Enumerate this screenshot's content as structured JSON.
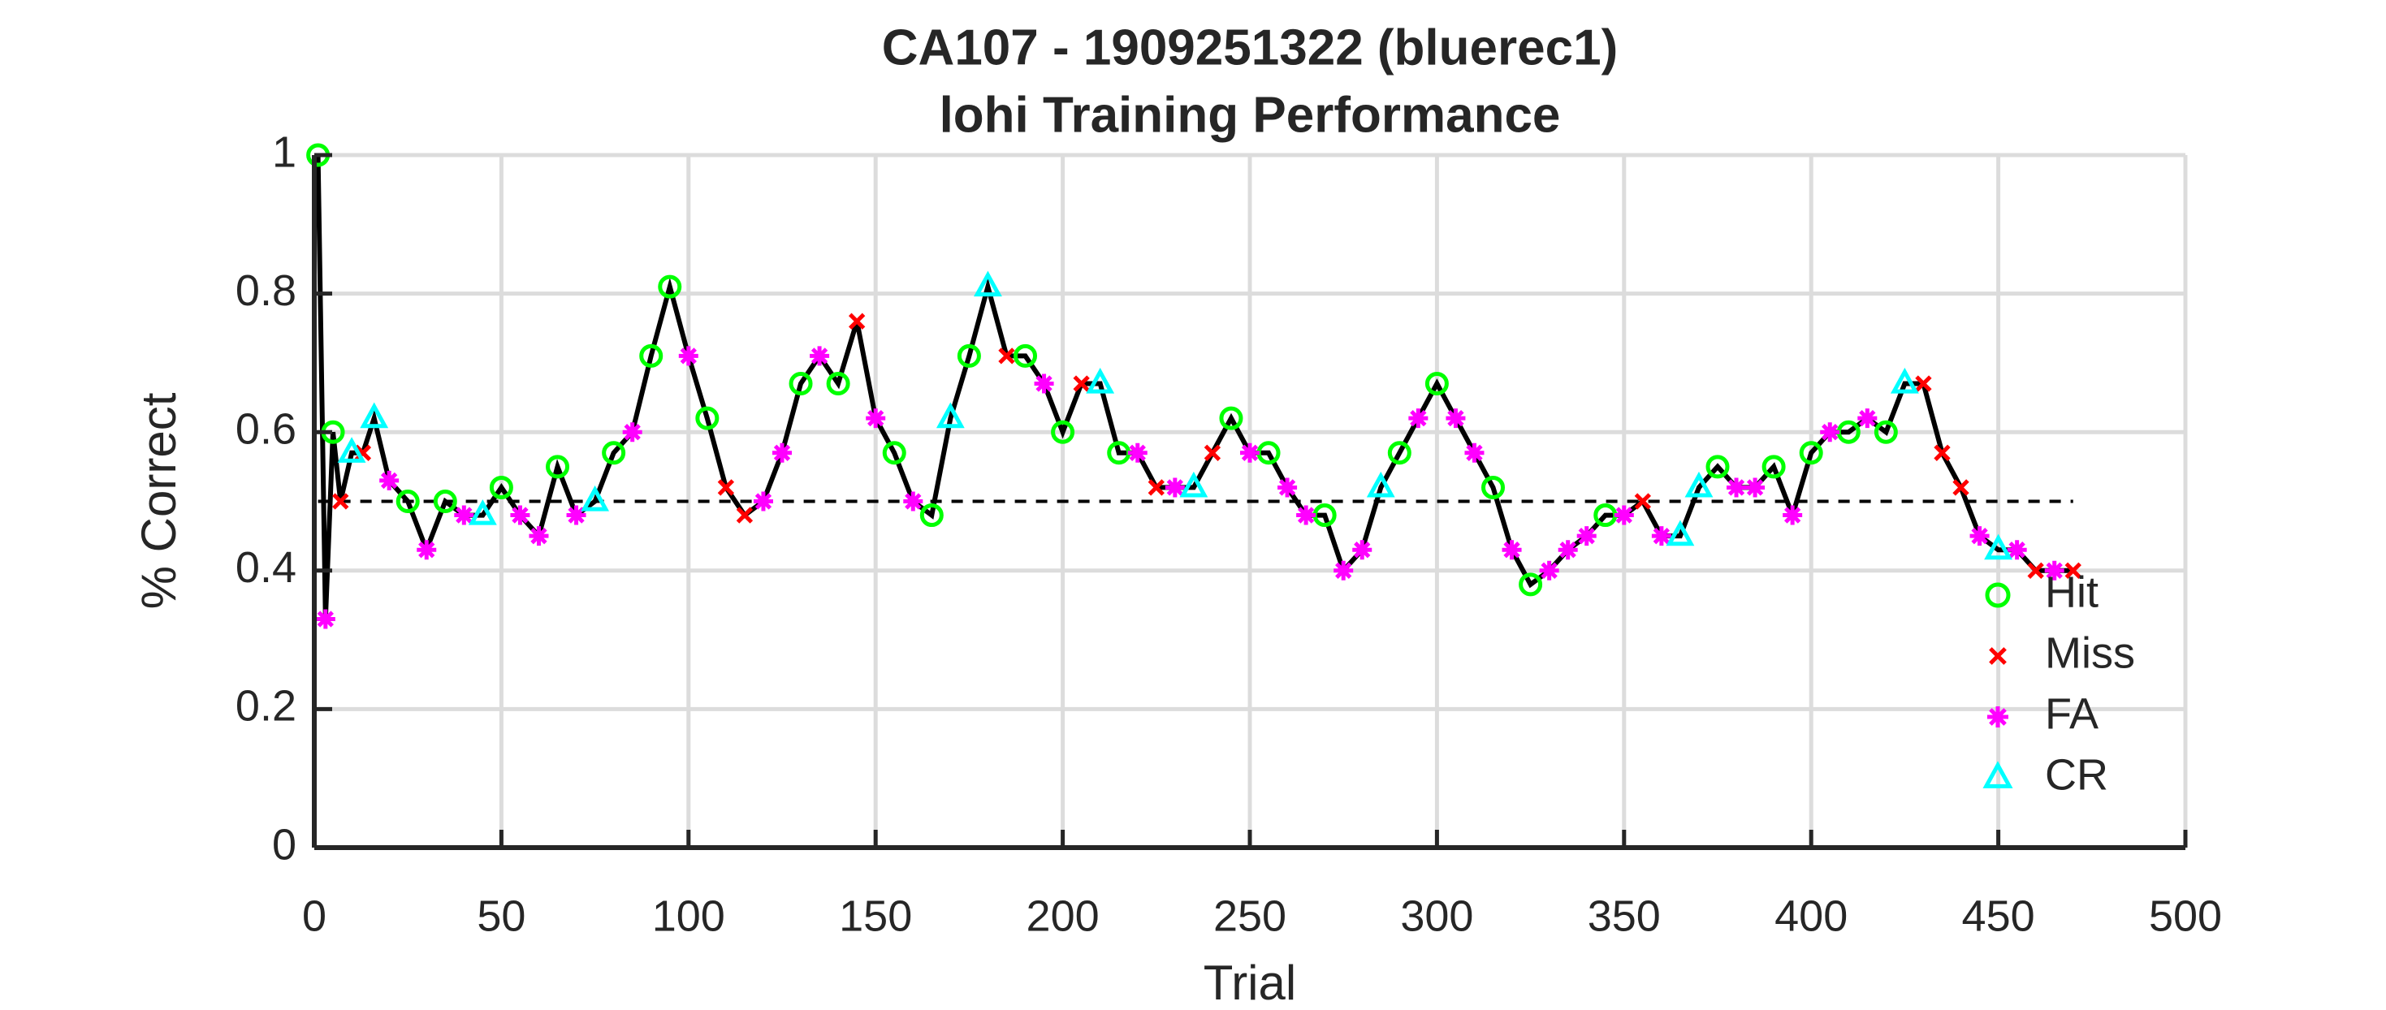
{
  "chart_data": {
    "type": "line",
    "title": "CA107 - 1909251322 (bluerec1)",
    "subtitle": "lohi Training Performance",
    "x_label": "Trial",
    "y_label": "% Correct",
    "xlim": [
      0,
      500
    ],
    "ylim": [
      0,
      1
    ],
    "xticks": [
      0,
      50,
      100,
      150,
      200,
      250,
      300,
      350,
      400,
      450,
      500
    ],
    "yticks": [
      0,
      0.2,
      0.4,
      0.6,
      0.8,
      1
    ],
    "grid": true,
    "legend": "lower right",
    "reference_line": 0.5,
    "line": {
      "color": "#000000",
      "x": [
        1,
        3,
        5,
        7,
        10,
        13,
        16,
        20,
        25,
        30,
        35,
        40,
        45,
        50,
        55,
        60,
        65,
        70,
        75,
        80,
        85,
        90,
        95,
        100,
        105,
        110,
        115,
        120,
        125,
        130,
        135,
        140,
        145,
        150,
        155,
        160,
        165,
        170,
        175,
        180,
        185,
        190,
        195,
        200,
        205,
        210,
        215,
        220,
        225,
        230,
        235,
        240,
        245,
        250,
        255,
        260,
        265,
        270,
        275,
        280,
        285,
        290,
        295,
        300,
        305,
        310,
        315,
        320,
        325,
        330,
        335,
        340,
        345,
        350,
        355,
        360,
        365,
        370,
        375,
        380,
        385,
        390,
        395,
        400,
        405,
        410,
        415,
        420,
        425,
        430,
        435,
        440,
        445,
        450,
        455,
        460,
        465,
        470
      ],
      "values": [
        1.0,
        0.33,
        0.6,
        0.5,
        0.57,
        0.57,
        0.62,
        0.53,
        0.5,
        0.43,
        0.5,
        0.48,
        0.48,
        0.52,
        0.48,
        0.45,
        0.55,
        0.48,
        0.5,
        0.57,
        0.6,
        0.71,
        0.81,
        0.71,
        0.62,
        0.52,
        0.48,
        0.5,
        0.57,
        0.67,
        0.71,
        0.67,
        0.76,
        0.62,
        0.57,
        0.5,
        0.48,
        0.62,
        0.71,
        0.81,
        0.71,
        0.71,
        0.67,
        0.6,
        0.67,
        0.67,
        0.57,
        0.57,
        0.52,
        0.52,
        0.52,
        0.57,
        0.62,
        0.57,
        0.57,
        0.52,
        0.48,
        0.48,
        0.4,
        0.43,
        0.52,
        0.57,
        0.62,
        0.67,
        0.62,
        0.57,
        0.52,
        0.43,
        0.38,
        0.4,
        0.43,
        0.45,
        0.48,
        0.48,
        0.5,
        0.45,
        0.45,
        0.52,
        0.55,
        0.52,
        0.52,
        0.55,
        0.48,
        0.57,
        0.6,
        0.6,
        0.62,
        0.6,
        0.67,
        0.67,
        0.57,
        0.52,
        0.45,
        0.43,
        0.43,
        0.4,
        0.4,
        0.4
      ]
    },
    "series": [
      {
        "name": "Hit",
        "color": "#00ff00",
        "marker": "circle",
        "x": [
          1,
          5,
          25,
          35,
          50,
          65,
          80,
          90,
          95,
          105,
          130,
          140,
          155,
          165,
          175,
          190,
          200,
          215,
          245,
          255,
          270,
          290,
          300,
          315,
          325,
          345,
          375,
          390,
          400,
          410,
          420
        ],
        "values": [
          1.0,
          0.6,
          0.5,
          0.5,
          0.52,
          0.55,
          0.57,
          0.71,
          0.81,
          0.62,
          0.67,
          0.67,
          0.57,
          0.48,
          0.71,
          0.71,
          0.6,
          0.57,
          0.62,
          0.57,
          0.48,
          0.57,
          0.67,
          0.52,
          0.38,
          0.48,
          0.55,
          0.55,
          0.57,
          0.6,
          0.6
        ]
      },
      {
        "name": "Miss",
        "color": "#ff0000",
        "marker": "x",
        "x": [
          7,
          13,
          110,
          115,
          145,
          185,
          205,
          225,
          240,
          355,
          430,
          435,
          440,
          460,
          470
        ],
        "values": [
          0.5,
          0.57,
          0.52,
          0.48,
          0.76,
          0.71,
          0.67,
          0.52,
          0.57,
          0.5,
          0.67,
          0.57,
          0.52,
          0.4,
          0.4
        ]
      },
      {
        "name": "FA",
        "color": "#ff00ff",
        "marker": "asterisk",
        "x": [
          3,
          20,
          30,
          40,
          55,
          60,
          70,
          85,
          100,
          120,
          125,
          135,
          150,
          160,
          195,
          220,
          230,
          250,
          260,
          265,
          275,
          280,
          295,
          305,
          310,
          320,
          330,
          335,
          340,
          350,
          360,
          380,
          385,
          395,
          405,
          415,
          445,
          455,
          465
        ],
        "values": [
          0.33,
          0.53,
          0.43,
          0.48,
          0.48,
          0.45,
          0.48,
          0.6,
          0.71,
          0.5,
          0.57,
          0.71,
          0.62,
          0.5,
          0.67,
          0.57,
          0.52,
          0.57,
          0.52,
          0.48,
          0.4,
          0.43,
          0.62,
          0.62,
          0.57,
          0.43,
          0.4,
          0.43,
          0.45,
          0.48,
          0.45,
          0.52,
          0.52,
          0.48,
          0.6,
          0.62,
          0.45,
          0.43,
          0.4
        ]
      },
      {
        "name": "CR",
        "color": "#00ffff",
        "marker": "triangle",
        "x": [
          10,
          16,
          45,
          75,
          170,
          180,
          210,
          235,
          285,
          365,
          370,
          425,
          450
        ],
        "values": [
          0.57,
          0.62,
          0.48,
          0.5,
          0.62,
          0.81,
          0.67,
          0.52,
          0.52,
          0.45,
          0.52,
          0.67,
          0.43
        ]
      }
    ]
  }
}
